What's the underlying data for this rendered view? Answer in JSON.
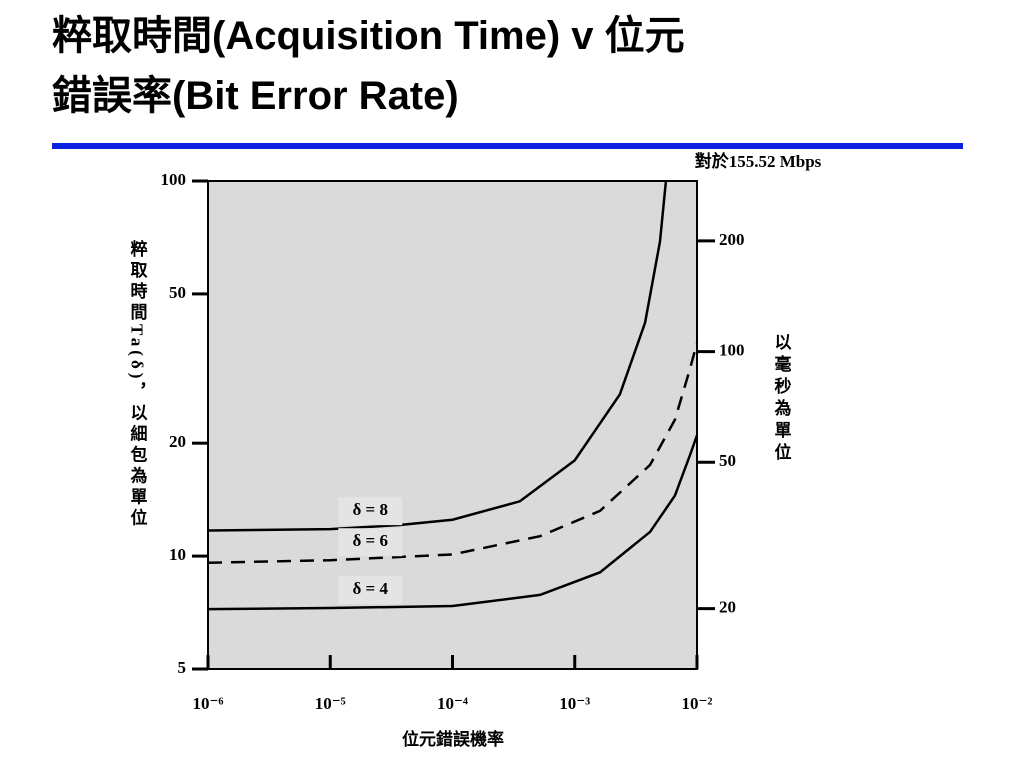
{
  "chart_data": {
    "type": "line",
    "title": [
      "粹取時間(Acquisition Time) v 位元",
      "錯誤率(Bit Error Rate)"
    ],
    "annotation": "對於155.52 Mbps",
    "x_label": "位元錯誤機率",
    "y_label": "粹取時間Ta(δ)，以細包為單位",
    "y2_label": "以毫秒為單位",
    "xscale": "log",
    "yscale": "log",
    "xlim": [
      1e-06,
      0.01
    ],
    "xticks": [
      {
        "value": 1e-06,
        "label": "10⁻⁶"
      },
      {
        "value": 1e-05,
        "label": "10⁻⁵"
      },
      {
        "value": 0.0001,
        "label": "10⁻⁴"
      },
      {
        "value": 0.001,
        "label": "10⁻³"
      },
      {
        "value": 0.01,
        "label": "10⁻²"
      }
    ],
    "ylim": [
      5,
      100
    ],
    "yticks": [
      5,
      10,
      20,
      50,
      100
    ],
    "y2lim": [
      13.7,
      291
    ],
    "y2ticks": [
      20,
      50,
      100,
      200
    ],
    "background": "#dadada",
    "series": [
      {
        "name": "δ = 8",
        "color": "#000000",
        "line_style": "solid",
        "x": [
          1e-06,
          1e-05,
          3.7e-05,
          0.0001,
          0.000356,
          0.001,
          0.00234,
          0.00376,
          0.00498,
          0.00557
        ],
        "values": [
          11.7,
          11.8,
          12.1,
          12.5,
          14.0,
          18.0,
          27.0,
          41.9,
          69,
          100
        ]
      },
      {
        "name": "δ = 6",
        "color": "#000000",
        "line_style": "dashed",
        "x": [
          1e-06,
          1e-05,
          0.0001,
          0.00052,
          0.00161,
          0.00413,
          0.0066,
          0.00877,
          0.01
        ],
        "values": [
          9.6,
          9.75,
          10.1,
          11.3,
          13.2,
          17.5,
          23.1,
          31.6,
          37.0
        ]
      },
      {
        "name": "δ = 4",
        "color": "#000000",
        "line_style": "solid",
        "x": [
          1e-06,
          1e-05,
          0.0001,
          0.00052,
          0.00161,
          0.00413,
          0.0066,
          0.00877,
          0.01
        ],
        "values": [
          7.22,
          7.27,
          7.36,
          7.88,
          9.05,
          11.6,
          14.5,
          18.6,
          21.0
        ]
      }
    ]
  }
}
